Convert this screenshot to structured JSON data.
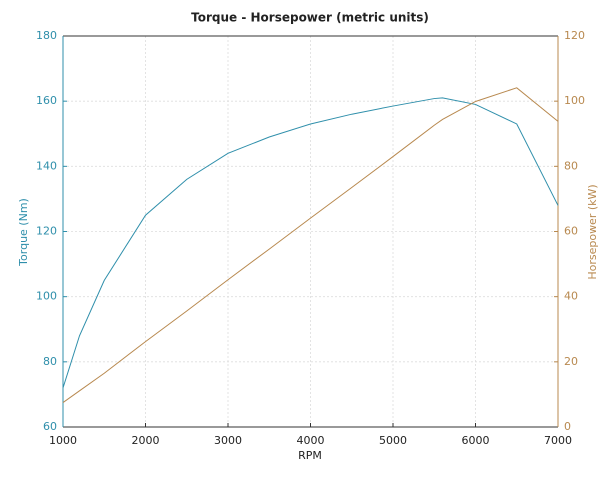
{
  "chart_data": {
    "type": "line",
    "title": "Torque - Horsepower (metric units)",
    "xlabel": "RPM",
    "ylabel": "Torque (Nm)",
    "y2label": "Horsepower (kW)",
    "x": [
      1000,
      1200,
      1500,
      2000,
      2500,
      3000,
      3500,
      4000,
      4500,
      5000,
      5500,
      5600,
      6000,
      6500,
      7000
    ],
    "series": [
      {
        "color": "#2f8fab",
        "axis": "y",
        "values": [
          72,
          88,
          105,
          125,
          136,
          144,
          149,
          153,
          156,
          158.5,
          160.8,
          161,
          159,
          153,
          128
        ]
      },
      {
        "color": "#b8894f",
        "axis": "y2",
        "values": [
          7.5,
          11.1,
          16.5,
          26.2,
          35.6,
          45.2,
          54.6,
          64.1,
          73.5,
          83.0,
          92.6,
          94.4,
          99.9,
          104.1,
          93.8
        ]
      }
    ],
    "xlim": [
      1000,
      7000
    ],
    "xticks": [
      1000,
      2000,
      3000,
      4000,
      5000,
      6000,
      7000
    ],
    "ylim": [
      60,
      180
    ],
    "yticks": [
      60,
      80,
      100,
      120,
      140,
      160,
      180
    ],
    "y2lim": [
      0,
      120
    ],
    "y2ticks": [
      0,
      20,
      40,
      60,
      80,
      100,
      120
    ],
    "grid": true
  }
}
